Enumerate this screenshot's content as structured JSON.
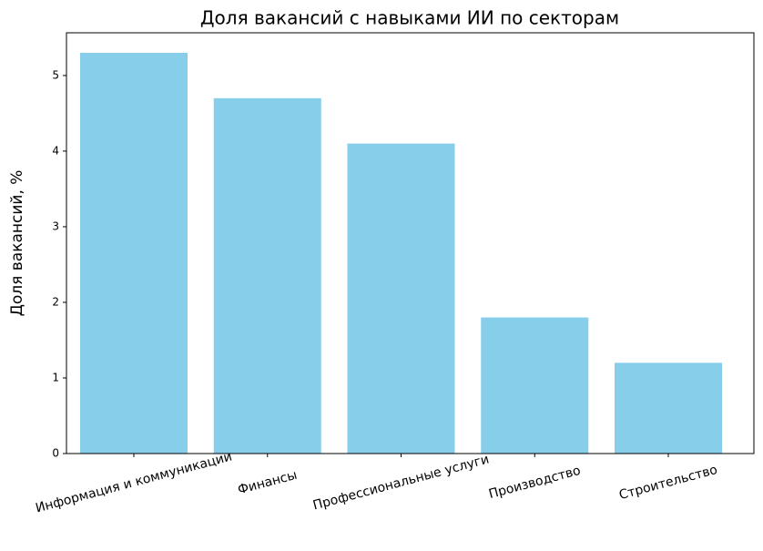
{
  "chart_data": {
    "type": "bar",
    "title": "Доля вакансий с навыками ИИ по секторам",
    "ylabel": "Доля вакансий, %",
    "categories": [
      "Информация и коммуникации",
      "Финансы",
      "Профессиональные услуги",
      "Производство",
      "Строительство"
    ],
    "values": [
      5.3,
      4.7,
      4.1,
      1.8,
      1.2
    ],
    "color": "#87ceeb",
    "ylim": [
      0,
      5.565
    ],
    "yticks": [
      0,
      1,
      2,
      3,
      4,
      5
    ],
    "grid": false
  }
}
